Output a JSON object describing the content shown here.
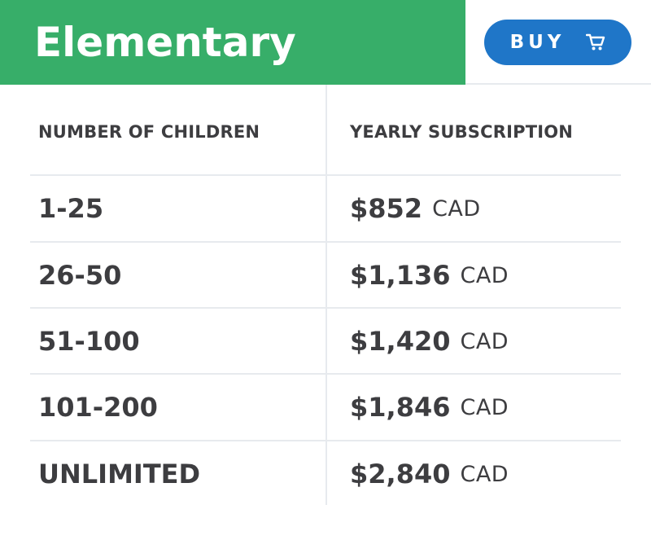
{
  "plan": {
    "title": "Elementary",
    "buy_label": "BUY",
    "buy_icon": "cart-icon"
  },
  "table": {
    "headers": [
      "NUMBER OF CHILDREN",
      "YEARLY SUBSCRIPTION"
    ],
    "currency": "CAD",
    "rows": [
      {
        "children": "1-25",
        "price": "$852"
      },
      {
        "children": "26-50",
        "price": "$1,136"
      },
      {
        "children": "51-100",
        "price": "$1,420"
      },
      {
        "children": "101-200",
        "price": "$1,846"
      },
      {
        "children": "UNLIMITED",
        "price": "$2,840"
      }
    ]
  },
  "colors": {
    "header_green": "#37ae69",
    "button_blue": "#1f76c8",
    "text": "#3d3d40",
    "grid": "#e7eaee"
  }
}
